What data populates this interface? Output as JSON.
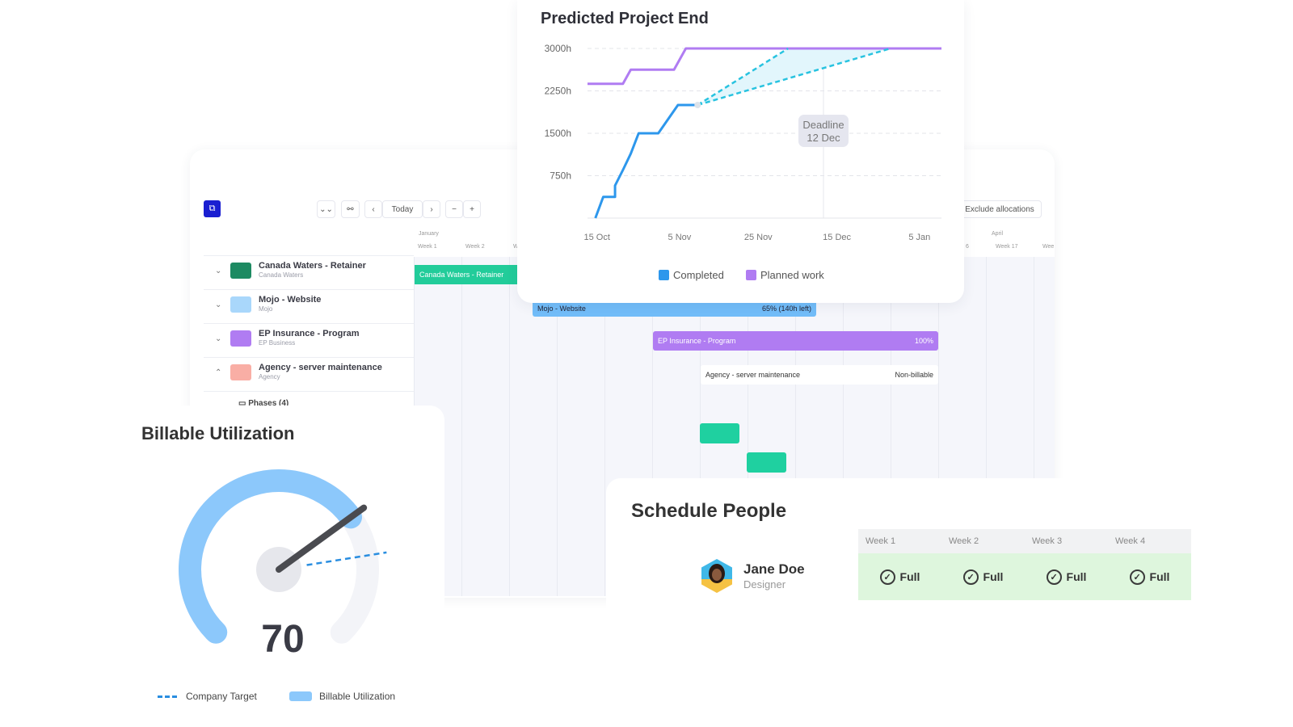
{
  "scheduler": {
    "toolbar": {
      "today": "Today",
      "prev": "‹",
      "next": "›",
      "zoom_out": "−",
      "zoom_in": "+",
      "collapse": "⌄⌄",
      "exclude": "Exclude allocations"
    },
    "months": {
      "left": "January",
      "right": "April"
    },
    "weeks_left": [
      "Week 1",
      "Week 2",
      "W"
    ],
    "weeks_right": [
      "6",
      "Week 17",
      "Wee"
    ],
    "projects": [
      {
        "name": "Canada Waters - Retainer",
        "client": "Canada Waters",
        "color": "#1d8a62",
        "expanded": false
      },
      {
        "name": "Mojo - Website",
        "client": "Mojo",
        "color": "#a9d7fb",
        "expanded": false
      },
      {
        "name": "EP Insurance - Program",
        "client": "EP Business",
        "color": "#b07cf2",
        "expanded": false
      },
      {
        "name": "Agency - server maintenance",
        "client": "Agency",
        "color": "#f9aea5",
        "expanded": true
      }
    ],
    "phases": "Phases (4)",
    "bars": {
      "canada": {
        "label": "Canada Waters - Retainer",
        "color": "#22cc9a"
      },
      "mojo": {
        "label": "Mojo - Website",
        "right": "65% (140h left)",
        "color": "#72bdf9"
      },
      "ep": {
        "label": "EP Insurance - Program",
        "right": "100%",
        "color": "#b07cf2"
      },
      "agency": {
        "label": "Agency - server maintenance",
        "right": "Non-billable"
      }
    }
  },
  "chart_data": {
    "type": "line",
    "title": "Predicted Project End",
    "yticks": [
      "3000h",
      "2250h",
      "1500h",
      "750h"
    ],
    "ylim": [
      0,
      3000
    ],
    "xticks": [
      "15 Oct",
      "5 Nov",
      "25 Nov",
      "15 Dec",
      "5 Jan"
    ],
    "xlim": [
      "13 Oct",
      "11 Jan"
    ],
    "grid": true,
    "legend_position": "bottom",
    "series": [
      {
        "name": "Completed",
        "color": "#2d97ec",
        "points": [
          [
            "15 Oct",
            0
          ],
          [
            "17 Oct",
            375
          ],
          [
            "20 Oct",
            375
          ],
          [
            "20 Oct",
            575
          ],
          [
            "22 Oct",
            850
          ],
          [
            "24 Oct",
            1140
          ],
          [
            "26 Oct",
            1500
          ],
          [
            "31 Oct",
            1500
          ],
          [
            "5 Nov",
            2000
          ],
          [
            "10 Nov",
            2000
          ]
        ]
      },
      {
        "name": "Planned work",
        "color": "#b07cf2",
        "points": [
          [
            "13 Oct",
            2375
          ],
          [
            "22 Oct",
            2375
          ],
          [
            "24 Oct",
            2625
          ],
          [
            "4 Nov",
            2625
          ],
          [
            "7 Nov",
            3000
          ],
          [
            "11 Jan",
            3000
          ]
        ]
      }
    ],
    "projection": {
      "color": "#28c3e0",
      "from": [
        "10 Nov",
        2000
      ],
      "to_early": [
        "3 Dec",
        3000
      ],
      "to_late": [
        "29 Dec",
        3000
      ]
    },
    "annotation": {
      "line1": "Deadline",
      "line2": "12 Dec",
      "date": "12 Dec"
    }
  },
  "billable": {
    "title": "Billable Utilization",
    "value": 70,
    "target": 80,
    "max": 100,
    "legend": {
      "target": "Company Target",
      "util": "Billable Utilization"
    },
    "color": "#8cc8fb",
    "target_color": "#2a8ee0"
  },
  "people": {
    "title": "Schedule People",
    "person": {
      "name": "Jane Doe",
      "role": "Designer"
    },
    "weeks": [
      "Week 1",
      "Week 2",
      "Week 3",
      "Week 4"
    ],
    "status": [
      "Full",
      "Full",
      "Full",
      "Full"
    ]
  }
}
